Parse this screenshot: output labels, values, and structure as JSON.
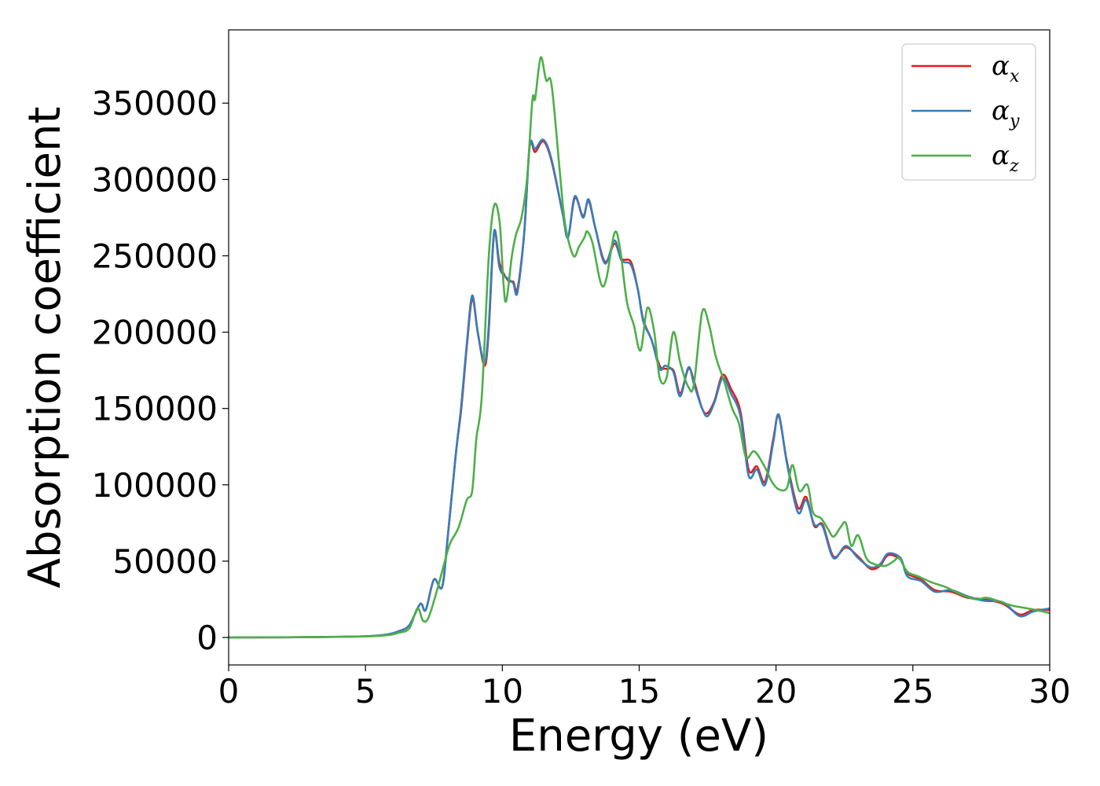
{
  "chart_data": {
    "type": "line",
    "title": "",
    "xlabel": "Energy (eV)",
    "ylabel": "Absorption coefficient",
    "xlim": [
      0,
      30
    ],
    "ylim": [
      -18000,
      398000
    ],
    "xticks": [
      0,
      5,
      10,
      15,
      20,
      25,
      30
    ],
    "yticks": [
      0,
      50000,
      100000,
      150000,
      200000,
      250000,
      300000,
      350000
    ],
    "grid": false,
    "legend": "top-right",
    "series": [
      {
        "name": "α",
        "subscript": "x",
        "color": "#e41a1c",
        "points": [
          [
            0,
            0
          ],
          [
            3,
            200
          ],
          [
            5,
            800
          ],
          [
            5.8,
            2000
          ],
          [
            6.2,
            4000
          ],
          [
            6.6,
            8000
          ],
          [
            7.0,
            22000
          ],
          [
            7.2,
            18000
          ],
          [
            7.5,
            38000
          ],
          [
            7.8,
            33000
          ],
          [
            8.0,
            65000
          ],
          [
            8.3,
            120000
          ],
          [
            8.5,
            150000
          ],
          [
            8.7,
            190000
          ],
          [
            8.9,
            222000
          ],
          [
            9.1,
            200000
          ],
          [
            9.35,
            178000
          ],
          [
            9.5,
            200000
          ],
          [
            9.7,
            265000
          ],
          [
            9.9,
            245000
          ],
          [
            10.2,
            234000
          ],
          [
            10.4,
            233000
          ],
          [
            10.55,
            228000
          ],
          [
            10.8,
            265000
          ],
          [
            11.0,
            322000
          ],
          [
            11.2,
            318000
          ],
          [
            11.5,
            325000
          ],
          [
            11.8,
            312000
          ],
          [
            12.2,
            278000
          ],
          [
            12.4,
            262000
          ],
          [
            12.65,
            288000
          ],
          [
            12.95,
            276000
          ],
          [
            13.15,
            286000
          ],
          [
            13.4,
            268000
          ],
          [
            13.75,
            246000
          ],
          [
            14.1,
            258000
          ],
          [
            14.35,
            248000
          ],
          [
            14.7,
            246000
          ],
          [
            14.95,
            228000
          ],
          [
            15.15,
            208000
          ],
          [
            15.45,
            195000
          ],
          [
            15.75,
            178000
          ],
          [
            15.95,
            176000
          ],
          [
            16.25,
            175000
          ],
          [
            16.5,
            160000
          ],
          [
            16.8,
            176000
          ],
          [
            17.0,
            168000
          ],
          [
            17.3,
            150000
          ],
          [
            17.5,
            147000
          ],
          [
            17.75,
            155000
          ],
          [
            18.05,
            172000
          ],
          [
            18.35,
            163000
          ],
          [
            18.7,
            148000
          ],
          [
            19.0,
            110000
          ],
          [
            19.3,
            112000
          ],
          [
            19.6,
            102000
          ],
          [
            19.9,
            130000
          ],
          [
            20.1,
            145000
          ],
          [
            20.4,
            115000
          ],
          [
            20.8,
            85000
          ],
          [
            21.1,
            92000
          ],
          [
            21.4,
            73000
          ],
          [
            21.7,
            74000
          ],
          [
            22.1,
            53000
          ],
          [
            22.55,
            59000
          ],
          [
            23.0,
            53000
          ],
          [
            23.45,
            45000
          ],
          [
            23.8,
            47000
          ],
          [
            24.1,
            54000
          ],
          [
            24.55,
            51000
          ],
          [
            24.8,
            42000
          ],
          [
            25.3,
            38000
          ],
          [
            25.8,
            31000
          ],
          [
            26.4,
            30000
          ],
          [
            27.0,
            26000
          ],
          [
            27.6,
            25000
          ],
          [
            28.3,
            22000
          ],
          [
            28.9,
            15000
          ],
          [
            29.4,
            18000
          ],
          [
            30.0,
            18000
          ]
        ]
      },
      {
        "name": "α",
        "subscript": "y",
        "color": "#377eb8",
        "points": [
          [
            0,
            0
          ],
          [
            3,
            200
          ],
          [
            5,
            800
          ],
          [
            5.8,
            2000
          ],
          [
            6.2,
            4000
          ],
          [
            6.6,
            8000
          ],
          [
            7.0,
            22000
          ],
          [
            7.2,
            18000
          ],
          [
            7.5,
            38000
          ],
          [
            7.8,
            33000
          ],
          [
            8.0,
            65000
          ],
          [
            8.3,
            120000
          ],
          [
            8.5,
            152000
          ],
          [
            8.7,
            192000
          ],
          [
            8.9,
            224000
          ],
          [
            9.1,
            200000
          ],
          [
            9.35,
            180000
          ],
          [
            9.5,
            203000
          ],
          [
            9.7,
            266000
          ],
          [
            9.9,
            242000
          ],
          [
            10.2,
            235000
          ],
          [
            10.4,
            232000
          ],
          [
            10.55,
            226000
          ],
          [
            10.8,
            265000
          ],
          [
            11.0,
            322000
          ],
          [
            11.2,
            320000
          ],
          [
            11.5,
            326000
          ],
          [
            11.8,
            313000
          ],
          [
            12.2,
            278000
          ],
          [
            12.4,
            262000
          ],
          [
            12.65,
            289000
          ],
          [
            12.95,
            275000
          ],
          [
            13.15,
            287000
          ],
          [
            13.4,
            268000
          ],
          [
            13.75,
            245000
          ],
          [
            14.1,
            260000
          ],
          [
            14.35,
            247000
          ],
          [
            14.7,
            244000
          ],
          [
            14.95,
            228000
          ],
          [
            15.15,
            207000
          ],
          [
            15.45,
            195000
          ],
          [
            15.75,
            176000
          ],
          [
            15.95,
            178000
          ],
          [
            16.25,
            174000
          ],
          [
            16.5,
            158000
          ],
          [
            16.8,
            177000
          ],
          [
            17.0,
            166000
          ],
          [
            17.3,
            150000
          ],
          [
            17.5,
            145000
          ],
          [
            17.75,
            154000
          ],
          [
            18.05,
            170000
          ],
          [
            18.35,
            160000
          ],
          [
            18.7,
            145000
          ],
          [
            19.0,
            106000
          ],
          [
            19.3,
            110000
          ],
          [
            19.6,
            100000
          ],
          [
            19.9,
            128000
          ],
          [
            20.1,
            146000
          ],
          [
            20.4,
            114000
          ],
          [
            20.8,
            82000
          ],
          [
            21.1,
            90000
          ],
          [
            21.4,
            74000
          ],
          [
            21.7,
            73000
          ],
          [
            22.1,
            52000
          ],
          [
            22.55,
            60000
          ],
          [
            23.0,
            52000
          ],
          [
            23.45,
            46000
          ],
          [
            23.8,
            48000
          ],
          [
            24.1,
            55000
          ],
          [
            24.55,
            52000
          ],
          [
            24.8,
            40000
          ],
          [
            25.3,
            37000
          ],
          [
            25.8,
            30000
          ],
          [
            26.4,
            31000
          ],
          [
            27.0,
            27000
          ],
          [
            27.6,
            24000
          ],
          [
            28.3,
            23000
          ],
          [
            28.9,
            14000
          ],
          [
            29.4,
            17000
          ],
          [
            30.0,
            19000
          ]
        ]
      },
      {
        "name": "α",
        "subscript": "z",
        "color": "#4daf4a",
        "points": [
          [
            0,
            0
          ],
          [
            3,
            200
          ],
          [
            5,
            700
          ],
          [
            5.8,
            1500
          ],
          [
            6.2,
            3000
          ],
          [
            6.6,
            6000
          ],
          [
            6.9,
            19000
          ],
          [
            7.1,
            11000
          ],
          [
            7.3,
            13000
          ],
          [
            7.6,
            30000
          ],
          [
            7.9,
            50000
          ],
          [
            8.1,
            62000
          ],
          [
            8.4,
            72000
          ],
          [
            8.7,
            90000
          ],
          [
            8.9,
            96000
          ],
          [
            9.05,
            130000
          ],
          [
            9.25,
            158000
          ],
          [
            9.5,
            248000
          ],
          [
            9.7,
            283000
          ],
          [
            9.9,
            272000
          ],
          [
            10.05,
            230000
          ],
          [
            10.15,
            221000
          ],
          [
            10.35,
            250000
          ],
          [
            10.5,
            264000
          ],
          [
            10.7,
            275000
          ],
          [
            10.9,
            300000
          ],
          [
            11.1,
            352000
          ],
          [
            11.2,
            353000
          ],
          [
            11.4,
            380000
          ],
          [
            11.6,
            365000
          ],
          [
            11.8,
            362000
          ],
          [
            12.1,
            305000
          ],
          [
            12.3,
            270000
          ],
          [
            12.6,
            250000
          ],
          [
            12.8,
            256000
          ],
          [
            13.0,
            262000
          ],
          [
            13.1,
            266000
          ],
          [
            13.3,
            258000
          ],
          [
            13.6,
            232000
          ],
          [
            13.8,
            235000
          ],
          [
            14.1,
            265000
          ],
          [
            14.3,
            255000
          ],
          [
            14.55,
            220000
          ],
          [
            14.8,
            205000
          ],
          [
            15.05,
            188000
          ],
          [
            15.3,
            216000
          ],
          [
            15.55,
            200000
          ],
          [
            15.75,
            170000
          ],
          [
            16.0,
            170000
          ],
          [
            16.25,
            200000
          ],
          [
            16.5,
            180000
          ],
          [
            16.8,
            164000
          ],
          [
            17.0,
            166000
          ],
          [
            17.3,
            213000
          ],
          [
            17.55,
            205000
          ],
          [
            17.8,
            184000
          ],
          [
            18.1,
            168000
          ],
          [
            18.4,
            150000
          ],
          [
            18.65,
            140000
          ],
          [
            18.9,
            118000
          ],
          [
            19.2,
            122000
          ],
          [
            19.55,
            113000
          ],
          [
            19.85,
            102000
          ],
          [
            20.1,
            97000
          ],
          [
            20.4,
            98000
          ],
          [
            20.6,
            113000
          ],
          [
            20.85,
            96000
          ],
          [
            21.15,
            100000
          ],
          [
            21.35,
            82000
          ],
          [
            21.65,
            78000
          ],
          [
            21.9,
            71000
          ],
          [
            22.1,
            66000
          ],
          [
            22.35,
            72000
          ],
          [
            22.55,
            75000
          ],
          [
            22.75,
            60000
          ],
          [
            23.0,
            67000
          ],
          [
            23.3,
            52000
          ],
          [
            23.6,
            48000
          ],
          [
            24.0,
            47000
          ],
          [
            24.3,
            50000
          ],
          [
            24.5,
            52000
          ],
          [
            24.8,
            43000
          ],
          [
            25.2,
            40000
          ],
          [
            25.7,
            36000
          ],
          [
            26.2,
            33000
          ],
          [
            26.8,
            28000
          ],
          [
            27.3,
            25000
          ],
          [
            27.7,
            26000
          ],
          [
            28.1,
            24000
          ],
          [
            28.6,
            21000
          ],
          [
            29.2,
            19000
          ],
          [
            29.5,
            18000
          ],
          [
            30.0,
            16000
          ]
        ]
      }
    ]
  }
}
